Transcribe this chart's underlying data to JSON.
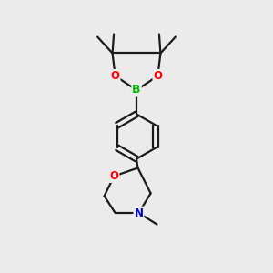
{
  "background_color": "#ebebeb",
  "bond_color": "#1a1a1a",
  "atom_colors": {
    "B": "#00bb00",
    "O": "#ff0000",
    "N": "#0000cc",
    "C": "#1a1a1a"
  },
  "figsize": [
    3.0,
    3.0
  ],
  "dpi": 100,
  "xlim": [
    0,
    10
  ],
  "ylim": [
    0,
    10
  ]
}
